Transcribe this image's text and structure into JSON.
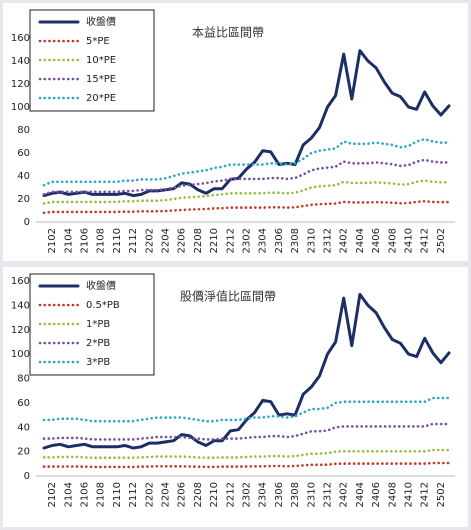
{
  "chart_data": [
    {
      "type": "line",
      "title": "本益比區間帶",
      "categories": [
        null,
        "2102",
        null,
        "2104",
        null,
        "2106",
        null,
        "2108",
        null,
        "2110",
        null,
        "2112",
        null,
        "2202",
        null,
        "2204",
        null,
        "2206",
        null,
        "2208",
        null,
        "2210",
        null,
        "2212",
        null,
        "2302",
        null,
        "2304",
        null,
        "2306",
        null,
        "2308",
        null,
        "2310",
        null,
        "2312",
        null,
        "2402",
        null,
        "2404",
        null,
        "2406",
        null,
        "2408",
        null,
        "2410",
        null,
        "2412",
        null,
        "2502",
        null
      ],
      "ylim": [
        0,
        160
      ],
      "yticks": [
        0,
        20,
        40,
        60,
        80,
        100,
        120,
        140,
        160
      ],
      "grid": false,
      "legend": "upper left",
      "series": [
        {
          "name": "收盤價",
          "color": "#1b2f66",
          "style": "solid",
          "values": [
            23,
            25,
            26,
            24,
            25,
            26,
            24,
            24,
            24,
            24,
            25,
            23,
            24,
            27,
            27,
            28,
            29,
            34,
            33,
            28,
            25,
            29,
            29,
            37,
            38,
            46,
            52,
            62,
            61,
            50,
            51,
            50,
            67,
            73,
            82,
            100,
            110,
            146,
            107,
            149,
            140,
            134,
            122,
            112,
            109,
            100,
            98,
            113,
            101,
            93,
            101
          ]
        },
        {
          "name": "5*PE",
          "color": "#c0392b",
          "style": "dotted",
          "values": [
            8,
            8.8,
            8.8,
            8.8,
            8.8,
            8.8,
            8.8,
            8.8,
            8.8,
            8.8,
            9,
            9,
            9.3,
            9.3,
            9.3,
            9.5,
            10,
            10.5,
            10.8,
            11,
            11.3,
            11.8,
            12,
            12.5,
            12.5,
            12.5,
            12.5,
            12.5,
            12.8,
            12.8,
            12.5,
            12.8,
            13.8,
            15,
            15.5,
            15.8,
            16,
            17.5,
            17,
            17,
            17,
            17.3,
            17,
            16.8,
            16.3,
            16.5,
            17.5,
            18,
            17.5,
            17.3,
            17.3
          ]
        },
        {
          "name": "10*PE",
          "color": "#9bbb3b",
          "style": "dotted",
          "values": [
            16,
            17.5,
            17.5,
            17.5,
            17.5,
            17.5,
            17.5,
            17.5,
            17.5,
            17.5,
            18,
            18,
            18.5,
            18.5,
            18.5,
            19,
            20,
            21,
            21.5,
            22,
            22.5,
            23.5,
            24,
            25,
            25,
            25,
            25,
            25,
            25.5,
            25.5,
            25,
            25.5,
            27.5,
            30,
            31,
            31.5,
            32,
            35,
            34,
            34,
            34,
            34.5,
            34,
            33.5,
            32.5,
            33,
            35,
            36,
            35,
            34.5,
            34.5
          ]
        },
        {
          "name": "15*PE",
          "color": "#7b4fa0",
          "style": "dotted",
          "values": [
            24,
            26.3,
            26.3,
            26.3,
            26.3,
            26.3,
            26.3,
            26.3,
            26.3,
            26.3,
            27,
            27,
            27.8,
            27.8,
            27.8,
            28.5,
            30,
            31.5,
            32.3,
            33,
            33.8,
            35.3,
            36,
            37.5,
            37.5,
            37.5,
            37.5,
            37.5,
            38.3,
            38.3,
            37.5,
            38.3,
            41.3,
            45,
            46.5,
            47.3,
            48,
            52.5,
            51,
            51,
            51,
            51.8,
            51,
            50.3,
            48.8,
            49.5,
            52.5,
            54,
            52.5,
            51.8,
            51.8
          ]
        },
        {
          "name": "20*PE",
          "color": "#2aa7c9",
          "style": "dotted",
          "values": [
            32,
            35,
            35,
            35,
            35,
            35,
            35,
            35,
            35,
            35,
            36,
            36,
            37,
            37,
            37,
            38,
            40,
            42,
            43,
            44,
            45,
            47,
            48,
            50,
            50,
            50,
            50,
            50,
            51,
            51,
            50,
            51,
            55,
            60,
            62,
            63,
            64,
            70,
            68,
            68,
            68,
            69,
            68,
            67,
            65,
            66,
            70,
            72,
            70,
            69,
            69
          ]
        }
      ]
    },
    {
      "type": "line",
      "title": "股價淨值比區間帶",
      "categories": [
        null,
        "2102",
        null,
        "2104",
        null,
        "2106",
        null,
        "2108",
        null,
        "2110",
        null,
        "2112",
        null,
        "2202",
        null,
        "2204",
        null,
        "2206",
        null,
        "2208",
        null,
        "2210",
        null,
        "2212",
        null,
        "2302",
        null,
        "2304",
        null,
        "2306",
        null,
        "2308",
        null,
        "2310",
        null,
        "2312",
        null,
        "2402",
        null,
        "2404",
        null,
        "2406",
        null,
        "2408",
        null,
        "2410",
        null,
        "2412",
        null,
        "2502",
        null
      ],
      "ylim": [
        0,
        160
      ],
      "yticks": [
        0,
        20,
        40,
        60,
        80,
        100,
        120,
        140,
        160
      ],
      "grid": false,
      "legend": "upper left",
      "series": [
        {
          "name": "收盤價",
          "color": "#1b2f66",
          "style": "solid",
          "values": [
            23,
            25,
            26,
            24,
            25,
            26,
            24,
            24,
            24,
            24,
            25,
            23,
            24,
            27,
            27,
            28,
            29,
            34,
            33,
            28,
            25,
            29,
            29,
            37,
            38,
            46,
            52,
            62,
            61,
            50,
            51,
            50,
            67,
            73,
            82,
            100,
            110,
            146,
            107,
            149,
            140,
            134,
            122,
            112,
            109,
            100,
            98,
            113,
            101,
            93,
            101
          ]
        },
        {
          "name": "0.5*PB",
          "color": "#c0392b",
          "style": "dotted",
          "values": [
            7.7,
            7.7,
            7.8,
            7.8,
            7.8,
            7.7,
            7.5,
            7.5,
            7.5,
            7.5,
            7.5,
            7.5,
            7.7,
            7.8,
            8,
            8,
            8,
            8,
            7.8,
            7.7,
            7.5,
            7.5,
            7.7,
            7.7,
            7.7,
            7.8,
            8,
            8,
            8.2,
            8.2,
            8,
            8.2,
            8.7,
            9.2,
            9.2,
            9.3,
            10,
            10.2,
            10.2,
            10.2,
            10.2,
            10.2,
            10.2,
            10.2,
            10.2,
            10.2,
            10.2,
            10.2,
            10.7,
            10.7,
            10.7
          ]
        },
        {
          "name": "1*PB",
          "color": "#9bbb3b",
          "style": "dotted",
          "values": [
            15.3,
            15.3,
            15.7,
            15.7,
            15.7,
            15.3,
            15,
            15,
            15,
            15,
            15,
            15,
            15.3,
            15.7,
            16,
            16,
            16,
            16,
            15.7,
            15.3,
            15,
            15,
            15.3,
            15.3,
            15.3,
            15.7,
            16,
            16,
            16.3,
            16.3,
            16,
            16.3,
            17.3,
            18.3,
            18.3,
            18.7,
            20,
            20.3,
            20.3,
            20.3,
            20.3,
            20.3,
            20.3,
            20.3,
            20.3,
            20.3,
            20.3,
            20.3,
            21.3,
            21.3,
            21.3
          ]
        },
        {
          "name": "2*PB",
          "color": "#7b4fa0",
          "style": "dotted",
          "values": [
            30.7,
            30.7,
            31.3,
            31.3,
            31.3,
            30.7,
            30,
            30,
            30,
            30,
            30,
            30,
            30.7,
            31.3,
            32,
            32,
            32,
            32,
            31.3,
            30.7,
            30,
            30,
            30.7,
            30.7,
            30.7,
            31.3,
            32,
            32,
            32.7,
            32.7,
            32,
            32.7,
            34.7,
            36.7,
            36.7,
            37.3,
            40,
            40.7,
            40.7,
            40.7,
            40.7,
            40.7,
            40.7,
            40.7,
            40.7,
            40.7,
            40.7,
            40.7,
            42.7,
            42.7,
            42.7
          ]
        },
        {
          "name": "3*PB",
          "color": "#2aa7c9",
          "style": "dotted",
          "values": [
            46,
            46,
            47,
            47,
            47,
            46,
            45,
            45,
            45,
            45,
            45,
            45,
            46,
            47,
            48,
            48,
            48,
            48,
            47,
            46,
            45,
            45,
            46,
            46,
            46,
            47,
            48,
            48,
            49,
            49,
            48,
            49,
            52,
            55,
            55,
            56,
            60,
            61,
            61,
            61,
            61,
            61,
            61,
            61,
            61,
            61,
            61,
            61,
            64,
            64,
            64
          ]
        }
      ]
    }
  ]
}
